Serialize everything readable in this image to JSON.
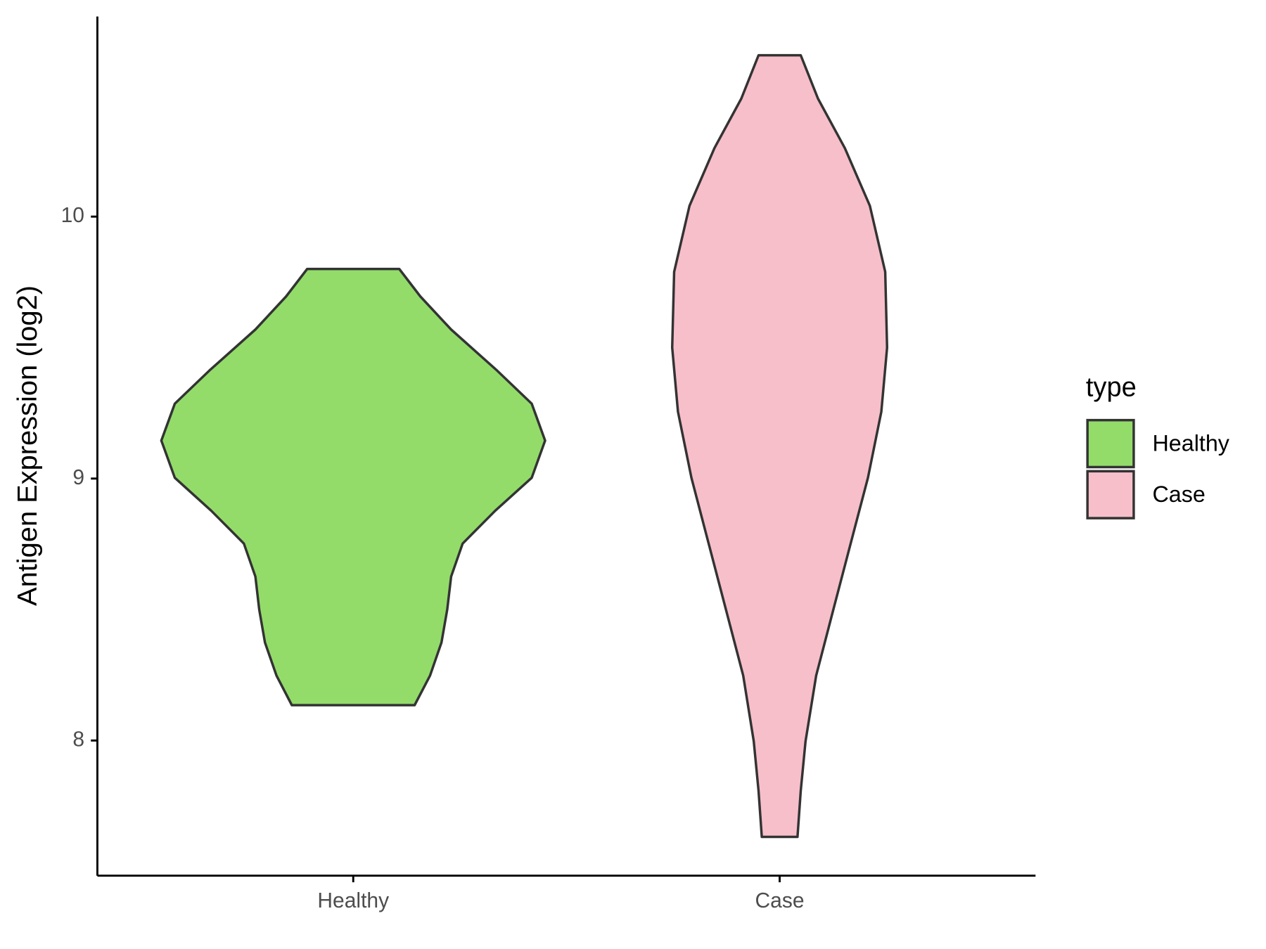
{
  "chart_data": {
    "type": "violin",
    "y_label": "Antigen Expression (log2)",
    "categories": [
      "Healthy",
      "Case"
    ],
    "ylim": [
      7.484,
      10.764
    ],
    "yticks": [
      8,
      9,
      10
    ],
    "legend_title": "type",
    "legend_position": "right",
    "series": [
      {
        "name": "Healthy",
        "color": "#93dc6a",
        "y": [
          9.8,
          9.695,
          9.569,
          9.412,
          9.286,
          9.145,
          9.003,
          8.877,
          8.752,
          8.626,
          8.5,
          8.374,
          8.248,
          8.135
        ],
        "density": [
          0.24,
          0.35,
          0.51,
          0.75,
          0.93,
          1,
          0.93,
          0.74,
          0.57,
          0.51,
          0.49,
          0.46,
          0.4,
          0.32
        ]
      },
      {
        "name": "Case",
        "color": "#f7bfca",
        "y": [
          10.616,
          10.45,
          10.261,
          10.041,
          9.789,
          9.5,
          9.255,
          9.003,
          8.752,
          8.5,
          8.248,
          7.997,
          7.808,
          7.632
        ],
        "density": [
          0.11,
          0.2,
          0.34,
          0.47,
          0.55,
          0.56,
          0.53,
          0.46,
          0.37,
          0.28,
          0.19,
          0.135,
          0.11,
          0.093
        ]
      }
    ]
  }
}
